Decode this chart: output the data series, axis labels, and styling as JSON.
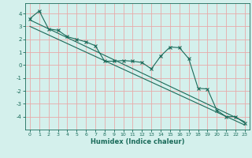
{
  "xlabel": "Humidex (Indice chaleur)",
  "bg_color": "#d4f0ec",
  "grid_color": "#e8aaaa",
  "line_color": "#1a6b5a",
  "xlim": [
    -0.5,
    23.5
  ],
  "ylim": [
    -5.0,
    4.8
  ],
  "yticks": [
    -4,
    -3,
    -2,
    -1,
    0,
    1,
    2,
    3,
    4
  ],
  "xticks": [
    0,
    1,
    2,
    3,
    4,
    5,
    6,
    7,
    8,
    9,
    10,
    11,
    12,
    13,
    14,
    15,
    16,
    17,
    18,
    19,
    20,
    21,
    22,
    23
  ],
  "data_x": [
    0,
    1,
    2,
    3,
    4,
    5,
    6,
    7,
    8,
    9,
    10,
    11,
    12,
    13,
    14,
    15,
    16,
    17,
    18,
    19,
    20,
    21,
    22,
    23
  ],
  "data_y": [
    3.6,
    4.2,
    2.8,
    2.7,
    2.2,
    2.0,
    1.8,
    1.5,
    0.3,
    0.3,
    0.35,
    0.3,
    0.2,
    -0.3,
    0.7,
    1.4,
    1.35,
    0.5,
    -1.8,
    -1.85,
    -3.5,
    -4.0,
    -4.0,
    -4.5
  ],
  "trend1_x": [
    0,
    23
  ],
  "trend1_y": [
    3.5,
    -4.4
  ],
  "trend2_x": [
    0,
    23
  ],
  "trend2_y": [
    3.0,
    -4.65
  ]
}
